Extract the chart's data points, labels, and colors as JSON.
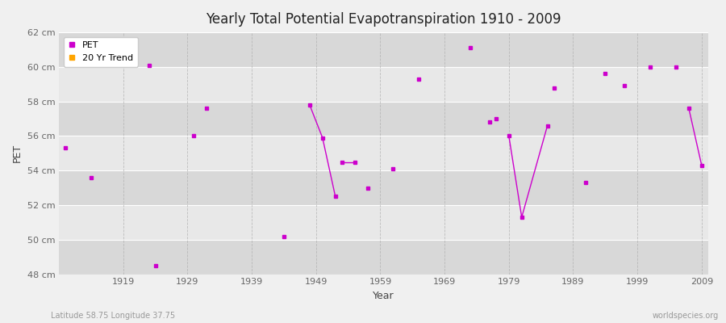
{
  "title": "Yearly Total Potential Evapotranspiration 1910 - 2009",
  "xlabel": "Year",
  "ylabel": "PET",
  "subtitle_left": "Latitude 58.75 Longitude 37.75",
  "subtitle_right": "worldspecies.org",
  "ylim": [
    48,
    62
  ],
  "yticks": [
    48,
    50,
    52,
    54,
    56,
    58,
    60,
    62
  ],
  "ytick_labels": [
    "48 cm",
    "50 cm",
    "52 cm",
    "54 cm",
    "56 cm",
    "58 cm",
    "60 cm",
    "62 cm"
  ],
  "xlim": [
    1909,
    2010
  ],
  "xticks": [
    1919,
    1929,
    1939,
    1949,
    1959,
    1969,
    1979,
    1989,
    1999,
    2009
  ],
  "pet_color": "#cc00cc",
  "trend_color": "#ffa500",
  "bg_color": "#f0f0f0",
  "band_colors": [
    "#e8e8e8",
    "#d8d8d8"
  ],
  "grid_color_h": "#ffffff",
  "grid_color_v": "#cccccc",
  "pet_points": [
    [
      1910,
      55.3
    ],
    [
      1914,
      53.6
    ],
    [
      1923,
      60.1
    ],
    [
      1924,
      48.5
    ],
    [
      1930,
      56.0
    ],
    [
      1932,
      57.6
    ],
    [
      1944,
      50.2
    ],
    [
      1948,
      57.8
    ],
    [
      1950,
      55.9
    ],
    [
      1952,
      52.5
    ],
    [
      1953,
      54.5
    ],
    [
      1955,
      54.5
    ],
    [
      1957,
      53.0
    ],
    [
      1961,
      54.1
    ],
    [
      1965,
      59.3
    ],
    [
      1973,
      61.1
    ],
    [
      1976,
      56.8
    ],
    [
      1977,
      57.0
    ],
    [
      1979,
      56.0
    ],
    [
      1981,
      51.3
    ],
    [
      1985,
      56.6
    ],
    [
      1986,
      58.8
    ],
    [
      1991,
      53.3
    ],
    [
      1994,
      59.6
    ],
    [
      1997,
      58.9
    ],
    [
      2001,
      60.0
    ],
    [
      2005,
      60.0
    ],
    [
      2007,
      57.6
    ],
    [
      2009,
      54.3
    ]
  ],
  "connected_segments": [
    [
      [
        1948,
        57.8
      ],
      [
        1950,
        55.9
      ],
      [
        1952,
        52.5
      ]
    ],
    [
      [
        1953,
        54.5
      ],
      [
        1955,
        54.5
      ]
    ],
    [
      [
        1979,
        56.0
      ],
      [
        1981,
        51.3
      ],
      [
        1985,
        56.6
      ]
    ],
    [
      [
        2007,
        57.6
      ],
      [
        2009,
        54.3
      ]
    ]
  ]
}
